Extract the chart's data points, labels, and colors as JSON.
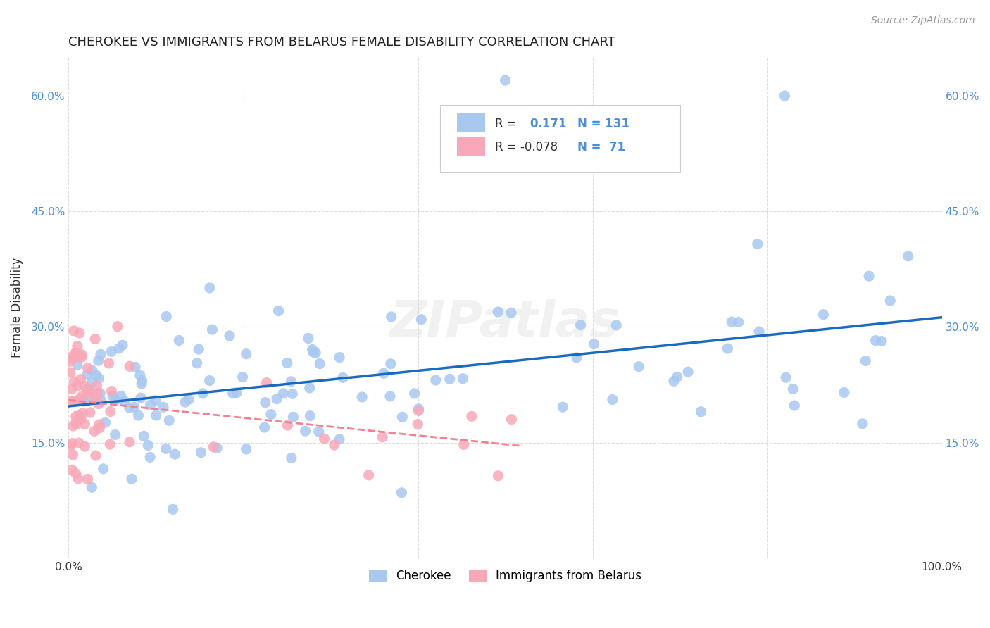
{
  "title": "CHEROKEE VS IMMIGRANTS FROM BELARUS FEMALE DISABILITY CORRELATION CHART",
  "source": "Source: ZipAtlas.com",
  "ylabel": "Female Disability",
  "xlim": [
    0.0,
    1.0
  ],
  "ylim": [
    0.0,
    0.65
  ],
  "x_ticks": [
    0.0,
    0.2,
    0.4,
    0.6,
    0.8,
    1.0
  ],
  "x_tick_labels": [
    "0.0%",
    "",
    "",
    "",
    "",
    "100.0%"
  ],
  "y_ticks": [
    0.0,
    0.15,
    0.3,
    0.45,
    0.6
  ],
  "y_tick_labels": [
    "",
    "15.0%",
    "30.0%",
    "45.0%",
    "60.0%"
  ],
  "cherokee_color": "#a8c8f0",
  "belarus_color": "#f8a8b8",
  "cherokee_line_color": "#1a6bbf",
  "belarus_line_color": "#f48090",
  "watermark": "ZIPatlas",
  "background_color": "#ffffff",
  "grid_color": "#dddddd"
}
